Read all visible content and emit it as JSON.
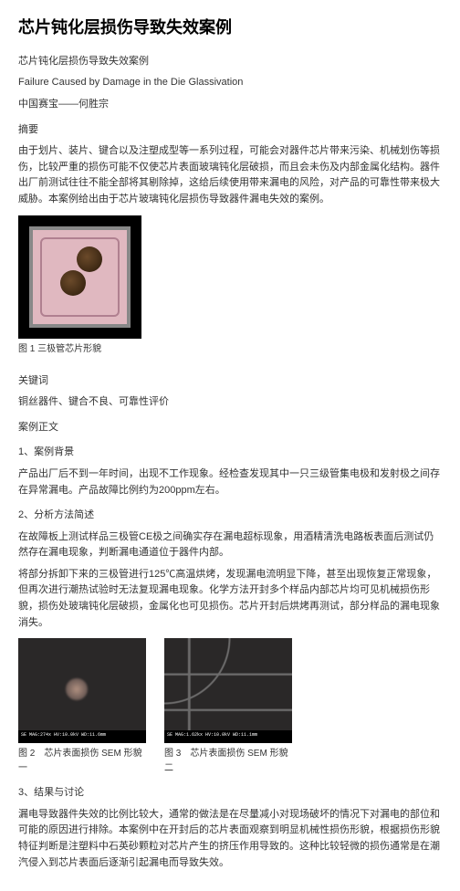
{
  "title": "芯片钝化层损伤导致失效案例",
  "subtitle_cn": "芯片钝化层损伤导致失效案例",
  "subtitle_en": "Failure Caused by Damage in the Die Glassivation",
  "author": "中国赛宝——何胜宗",
  "abstract_label": "摘要",
  "abstract_text": "由于划片、装片、键合以及注塑成型等一系列过程，可能会对器件芯片带来污染、机械划伤等损伤，比较严重的损伤可能不仅使芯片表面玻璃钝化层破损，而且会未伤及内部金属化结构。器件出厂前测试往往不能全部将其剔除掉，这给后续使用带来漏电的风险，对产品的可靠性带来极大威胁。本案例给出由于芯片玻璃钝化层损伤导致器件漏电失效的案例。",
  "fig1_caption": "图 1 三极管芯片形貌",
  "keywords_label": "关键词",
  "keywords_text": "铜丝器件、键合不良、可靠性评价",
  "body_label": "案例正文",
  "sec1_label": "1、案例背景",
  "sec1_text": "产品出厂后不到一年时间，出现不工作现象。经检查发现其中一只三级管集电极和发射极之间存在异常漏电。产品故障比例约为200ppm左右。",
  "sec2_label": "2、分析方法简述",
  "sec2_p1": "在故障板上测试样品三极管CE极之间确实存在漏电超标现象，用酒精清洗电路板表面后测试仍然存在漏电现象，判断漏电通道位于器件内部。",
  "sec2_p2": "将部分拆卸下来的三极管进行125℃高温烘烤，发现漏电流明显下降，甚至出现恢复正常现象，但再次进行潮热试验时无法复现漏电现象。化学方法开封多个样品内部芯片均可见机械损伤形貌，损伤处玻璃钝化层破损，金属化也可见损伤。芯片开封后烘烤再测试，部分样品的漏电现象消失。",
  "fig2_caption": "图 2　芯片表面损伤 SEM 形貌一",
  "fig3_caption": "图 3　芯片表面损伤 SEM 形貌二",
  "sem_meta1": "SE  MAG:274x  HV:10.0kV  WD:11.6mm",
  "sem_meta2": "SE  MAG:1.62kx  HV:10.0kV  WD:11.1mm",
  "sec3_label": "3、结果与讨论",
  "sec3_text": "漏电导致器件失效的比例比较大，通常的做法是在尽量减小对现场破坏的情况下对漏电的部位和可能的原因进行排除。本案例中在开封后的芯片表面观察到明显机械性损伤形貌，根据损伤形貌特征判断是注塑料中石英砂颗粒对芯片产生的挤压作用导致的。这种比较轻微的损伤通常是在潮汽侵入到芯片表面后逐渐引起漏电而导致失效。"
}
